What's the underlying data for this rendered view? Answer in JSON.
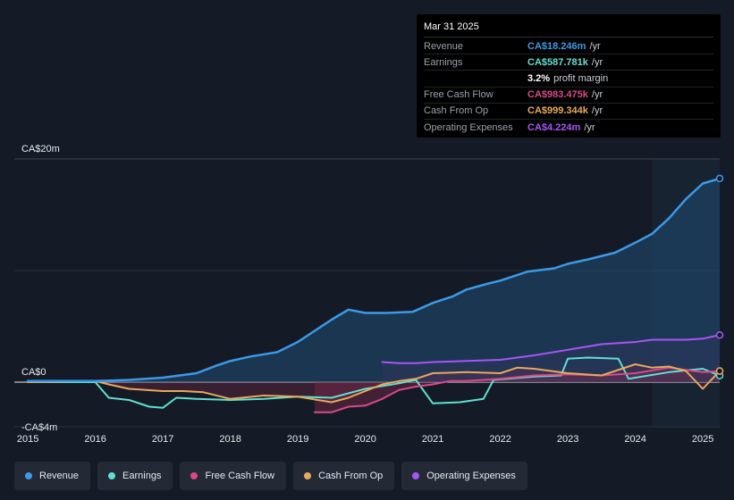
{
  "tooltip": {
    "date": "Mar 31 2025",
    "rows": [
      {
        "label": "Revenue",
        "value": "CA$18.246m",
        "unit": "/yr",
        "color": "#3b9ae8"
      },
      {
        "label": "Earnings",
        "value": "CA$587.781k",
        "unit": "/yr",
        "color": "#5fe0d0"
      },
      {
        "label": "",
        "value": "3.2%",
        "unit": "profit margin",
        "color": "#ffffff"
      },
      {
        "label": "Free Cash Flow",
        "value": "CA$983.475k",
        "unit": "/yr",
        "color": "#d9498a"
      },
      {
        "label": "Cash From Op",
        "value": "CA$999.344k",
        "unit": "/yr",
        "color": "#e8a95a"
      },
      {
        "label": "Operating Expenses",
        "value": "CA$4.224m",
        "unit": "/yr",
        "color": "#a855f7"
      }
    ]
  },
  "legend": [
    {
      "label": "Revenue",
      "color": "#3b9ae8"
    },
    {
      "label": "Earnings",
      "color": "#5fe0d0"
    },
    {
      "label": "Free Cash Flow",
      "color": "#d9498a"
    },
    {
      "label": "Cash From Op",
      "color": "#e8a95a"
    },
    {
      "label": "Operating Expenses",
      "color": "#a855f7"
    }
  ],
  "chart_data": {
    "type": "line",
    "title": "",
    "xlabel": "",
    "ylabel": "",
    "ylim": [
      -4,
      20
    ],
    "xlim": [
      2014.8,
      2025.25
    ],
    "y_tick_labels": [
      {
        "value": 20,
        "label": "CA$20m"
      },
      {
        "value": 0,
        "label": "CA$0"
      },
      {
        "value": -4,
        "label": "-CA$4m"
      }
    ],
    "x_ticks": [
      2015,
      2016,
      2017,
      2018,
      2019,
      2020,
      2021,
      2022,
      2023,
      2024,
      2025
    ],
    "x_tick_labels": [
      "2015",
      "2016",
      "2017",
      "2018",
      "2019",
      "2020",
      "2021",
      "2022",
      "2023",
      "2024",
      "2025"
    ],
    "highlight_start": 2024.25,
    "series": [
      {
        "name": "Revenue",
        "color": "#3b9ae8",
        "x": [
          2015,
          2016,
          2016.5,
          2017,
          2017.5,
          2017.8,
          2018,
          2018.3,
          2018.7,
          2019,
          2019.5,
          2019.75,
          2020,
          2020.3,
          2020.7,
          2021,
          2021.3,
          2021.5,
          2021.8,
          2022,
          2022.4,
          2022.8,
          2023,
          2023.3,
          2023.7,
          2024,
          2024.25,
          2024.5,
          2024.75,
          2025,
          2025.25
        ],
        "y": [
          0.1,
          0.1,
          0.2,
          0.4,
          0.8,
          1.5,
          1.9,
          2.3,
          2.7,
          3.6,
          5.6,
          6.5,
          6.2,
          6.2,
          6.3,
          7.1,
          7.7,
          8.3,
          8.8,
          9.1,
          9.9,
          10.2,
          10.6,
          11.0,
          11.6,
          12.5,
          13.3,
          14.7,
          16.4,
          17.8,
          18.246
        ]
      },
      {
        "name": "Earnings",
        "color": "#5fe0d0",
        "x": [
          2015,
          2016,
          2016.2,
          2016.5,
          2016.8,
          2017,
          2017.2,
          2017.5,
          2018,
          2018.5,
          2019,
          2019.5,
          2020,
          2020.5,
          2020.75,
          2021,
          2021.4,
          2021.75,
          2021.9,
          2022.5,
          2022.9,
          2023,
          2023.3,
          2023.75,
          2023.9,
          2024,
          2024.5,
          2025,
          2025.25
        ],
        "y": [
          0.0,
          0.0,
          -1.4,
          -1.6,
          -2.2,
          -2.3,
          -1.4,
          -1.5,
          -1.6,
          -1.5,
          -1.3,
          -1.4,
          -0.6,
          -0.1,
          0.2,
          -1.9,
          -1.8,
          -1.5,
          0.2,
          0.5,
          0.6,
          2.1,
          2.2,
          2.1,
          0.3,
          0.4,
          0.9,
          1.2,
          0.587781
        ]
      },
      {
        "name": "Free Cash Flow",
        "color": "#d9498a",
        "x": [
          2019.25,
          2019.5,
          2019.75,
          2020,
          2020.25,
          2020.5,
          2020.75,
          2021,
          2021.25,
          2021.5,
          2021.75,
          2022,
          2022.5,
          2023,
          2023.5,
          2024,
          2024.5,
          2025,
          2025.25
        ],
        "y": [
          -2.7,
          -2.7,
          -2.2,
          -2.1,
          -1.5,
          -0.7,
          -0.4,
          -0.2,
          0.1,
          0.1,
          0.2,
          0.3,
          0.6,
          0.7,
          0.6,
          0.8,
          1.3,
          0.9,
          0.983475
        ]
      },
      {
        "name": "Cash From Op",
        "color": "#e8a95a",
        "x": [
          2015,
          2016,
          2016.2,
          2016.5,
          2017,
          2017.3,
          2017.6,
          2018,
          2018.5,
          2019,
          2019.5,
          2019.75,
          2020,
          2020.25,
          2020.5,
          2020.75,
          2021,
          2021.5,
          2022,
          2022.25,
          2022.5,
          2023,
          2023.5,
          2024,
          2024.25,
          2024.5,
          2024.75,
          2025,
          2025.25
        ],
        "y": [
          0.0,
          0.1,
          -0.2,
          -0.6,
          -0.8,
          -0.8,
          -0.9,
          -1.5,
          -1.2,
          -1.3,
          -1.8,
          -1.4,
          -0.8,
          -0.2,
          0.1,
          0.3,
          0.8,
          0.9,
          0.8,
          1.3,
          1.2,
          0.8,
          0.6,
          1.6,
          1.3,
          1.4,
          1.0,
          -0.6,
          0.999344
        ]
      },
      {
        "name": "Operating Expenses",
        "color": "#a855f7",
        "x": [
          2020.25,
          2020.5,
          2020.75,
          2021,
          2021.5,
          2022,
          2022.5,
          2023,
          2023.5,
          2024,
          2024.25,
          2024.5,
          2024.75,
          2025,
          2025.25
        ],
        "y": [
          1.8,
          1.7,
          1.7,
          1.8,
          1.9,
          2.0,
          2.4,
          2.9,
          3.4,
          3.6,
          3.8,
          3.8,
          3.8,
          3.9,
          4.224
        ]
      }
    ]
  }
}
